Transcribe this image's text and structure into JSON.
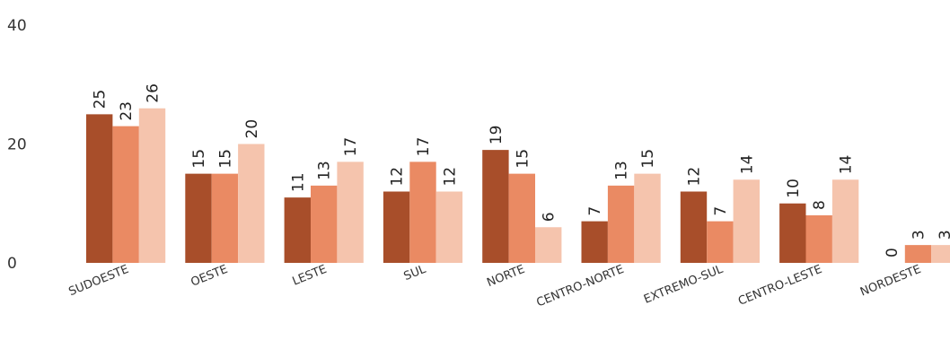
{
  "chart_data": {
    "type": "bar",
    "categories": [
      "SUDOESTE",
      "OESTE",
      "LESTE",
      "SUL",
      "NORTE",
      "CENTRO-NORTE",
      "EXTREMO-SUL",
      "CENTRO-LESTE",
      "NORDESTE"
    ],
    "series": [
      {
        "values": [
          25,
          15,
          11,
          12,
          19,
          7,
          12,
          10,
          0
        ],
        "color": "#A84E2A"
      },
      {
        "values": [
          23,
          15,
          13,
          17,
          15,
          13,
          7,
          8,
          3
        ],
        "color": "#EA8A63"
      },
      {
        "values": [
          26,
          20,
          17,
          12,
          6,
          15,
          14,
          14,
          3
        ],
        "color": "#F5C4AD"
      }
    ],
    "ylim": [
      0,
      40
    ],
    "yticks": [
      0,
      20,
      40
    ],
    "grid": false,
    "legend": "none"
  }
}
